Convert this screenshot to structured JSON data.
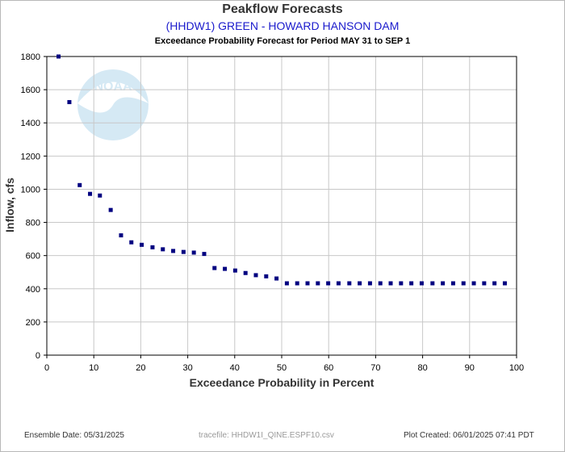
{
  "chart_data": {
    "type": "scatter",
    "title": "Peakflow Forecasts",
    "subtitle": "(HHDW1) GREEN - HOWARD HANSON DAM",
    "period_title": "Exceedance Probability Forecast for Period MAY 31 to SEP 1",
    "xlabel": "Exceedance Probability in Percent",
    "ylabel": "Inflow, cfs",
    "xlim": [
      0,
      100
    ],
    "ylim": [
      0,
      1800
    ],
    "xticks": [
      0,
      10,
      20,
      30,
      40,
      50,
      60,
      70,
      80,
      90,
      100
    ],
    "yticks": [
      0,
      200,
      400,
      600,
      800,
      1000,
      1200,
      1400,
      1600,
      1800
    ],
    "grid": true,
    "marker_color": "#000080",
    "points": [
      {
        "x": 2.5,
        "y": 1800
      },
      {
        "x": 4.8,
        "y": 1525
      },
      {
        "x": 7.0,
        "y": 1025
      },
      {
        "x": 9.2,
        "y": 972
      },
      {
        "x": 11.3,
        "y": 962
      },
      {
        "x": 13.6,
        "y": 875
      },
      {
        "x": 15.8,
        "y": 722
      },
      {
        "x": 18.0,
        "y": 680
      },
      {
        "x": 20.2,
        "y": 665
      },
      {
        "x": 22.5,
        "y": 650
      },
      {
        "x": 24.7,
        "y": 638
      },
      {
        "x": 26.9,
        "y": 628
      },
      {
        "x": 29.1,
        "y": 622
      },
      {
        "x": 31.3,
        "y": 618
      },
      {
        "x": 33.5,
        "y": 610
      },
      {
        "x": 35.7,
        "y": 525
      },
      {
        "x": 37.9,
        "y": 520
      },
      {
        "x": 40.1,
        "y": 510
      },
      {
        "x": 42.3,
        "y": 495
      },
      {
        "x": 44.5,
        "y": 482
      },
      {
        "x": 46.7,
        "y": 475
      },
      {
        "x": 48.9,
        "y": 462
      },
      {
        "x": 51.1,
        "y": 433
      },
      {
        "x": 53.3,
        "y": 433
      },
      {
        "x": 55.5,
        "y": 433
      },
      {
        "x": 57.7,
        "y": 433
      },
      {
        "x": 59.9,
        "y": 433
      },
      {
        "x": 62.1,
        "y": 433
      },
      {
        "x": 64.4,
        "y": 433
      },
      {
        "x": 66.6,
        "y": 433
      },
      {
        "x": 68.8,
        "y": 433
      },
      {
        "x": 71.0,
        "y": 433
      },
      {
        "x": 73.2,
        "y": 433
      },
      {
        "x": 75.4,
        "y": 433
      },
      {
        "x": 77.6,
        "y": 433
      },
      {
        "x": 79.8,
        "y": 433
      },
      {
        "x": 82.1,
        "y": 433
      },
      {
        "x": 84.3,
        "y": 433
      },
      {
        "x": 86.5,
        "y": 433
      },
      {
        "x": 88.7,
        "y": 433
      },
      {
        "x": 90.9,
        "y": 433
      },
      {
        "x": 93.1,
        "y": 433
      },
      {
        "x": 95.3,
        "y": 433
      },
      {
        "x": 97.5,
        "y": 433
      }
    ]
  },
  "footer": {
    "ensemble_date": "Ensemble Date: 05/31/2025",
    "tracefile": "tracefile: HHDW1I_QINE.ESPF10.csv",
    "plot_created": "Plot Created: 06/01/2025 07:41 PDT"
  },
  "logo": {
    "text": "NOAA",
    "color": "#1e88c8"
  }
}
